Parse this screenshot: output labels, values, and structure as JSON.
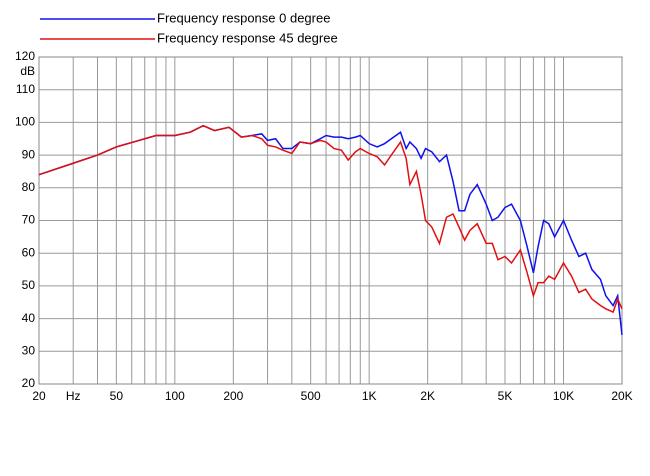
{
  "chart_data": {
    "type": "line",
    "y_label": "dB",
    "xscale": "log",
    "xlim": [
      20,
      20000
    ],
    "ylim": [
      20,
      120
    ],
    "xticks": [
      20,
      {
        "value": 30,
        "label": "Hz"
      },
      50,
      100,
      200,
      500,
      {
        "value": 1000,
        "label": "1K"
      },
      {
        "value": 2000,
        "label": "2K"
      },
      {
        "value": 5000,
        "label": "5K"
      },
      {
        "value": 10000,
        "label": "10K"
      },
      {
        "value": 20000,
        "label": "20K"
      }
    ],
    "x_minor_ticks": [
      40,
      60,
      70,
      80,
      90,
      300,
      400,
      600,
      700,
      800,
      900,
      3000,
      4000,
      6000,
      7000,
      8000,
      9000
    ],
    "yticks": [
      20,
      30,
      40,
      50,
      60,
      70,
      80,
      90,
      100,
      110,
      120
    ],
    "grid": true,
    "legend": "top-left",
    "x": [
      20,
      30,
      40,
      50,
      80,
      100,
      120,
      140,
      160,
      190,
      220,
      250,
      280,
      300,
      330,
      360,
      400,
      440,
      500,
      560,
      600,
      660,
      720,
      780,
      850,
      900,
      1000,
      1100,
      1200,
      1300,
      1450,
      1550,
      1620,
      1750,
      1850,
      1950,
      2100,
      2300,
      2500,
      2700,
      2900,
      3100,
      3300,
      3600,
      4000,
      4300,
      4600,
      5000,
      5400,
      6000,
      6500,
      7000,
      7400,
      7900,
      8400,
      9000,
      10000,
      11000,
      12000,
      13000,
      14000,
      15500,
      16500,
      18000,
      19000,
      20000
    ],
    "series": [
      {
        "name": "Frequency response 0 degree",
        "color": "#1010ee",
        "values": [
          84,
          87.5,
          90,
          92.5,
          96,
          96,
          97,
          99,
          97.5,
          98.5,
          95.5,
          96,
          96.5,
          94.5,
          95,
          92,
          92,
          94,
          93.5,
          95,
          96,
          95.5,
          95.5,
          95,
          95.5,
          96,
          93.5,
          92.5,
          93.5,
          95,
          97,
          92,
          94,
          92,
          89,
          92,
          91,
          88,
          90,
          82,
          73,
          73,
          78,
          81,
          75,
          70,
          71,
          74,
          75,
          70,
          62,
          54,
          62,
          70,
          69,
          65,
          70,
          64,
          59,
          60,
          55,
          52,
          47,
          44,
          47,
          35
        ]
      },
      {
        "name": "Frequency response 45 degree",
        "color": "#e01010",
        "values": [
          84,
          87.5,
          90,
          92.5,
          96,
          96,
          97,
          99,
          97.5,
          98.5,
          95.5,
          96,
          95,
          93,
          92.5,
          91.5,
          90.5,
          94,
          93.5,
          94.5,
          94,
          92,
          91.5,
          88.5,
          91,
          92,
          90.5,
          89.5,
          87,
          90,
          94,
          89,
          81,
          85,
          78,
          70,
          68,
          63,
          71,
          72,
          68,
          64,
          67,
          69,
          63,
          63,
          58,
          59,
          57,
          61,
          54,
          47,
          51,
          51,
          53,
          52,
          57,
          53,
          48,
          49,
          46,
          44,
          43,
          42,
          46,
          43
        ]
      }
    ]
  }
}
